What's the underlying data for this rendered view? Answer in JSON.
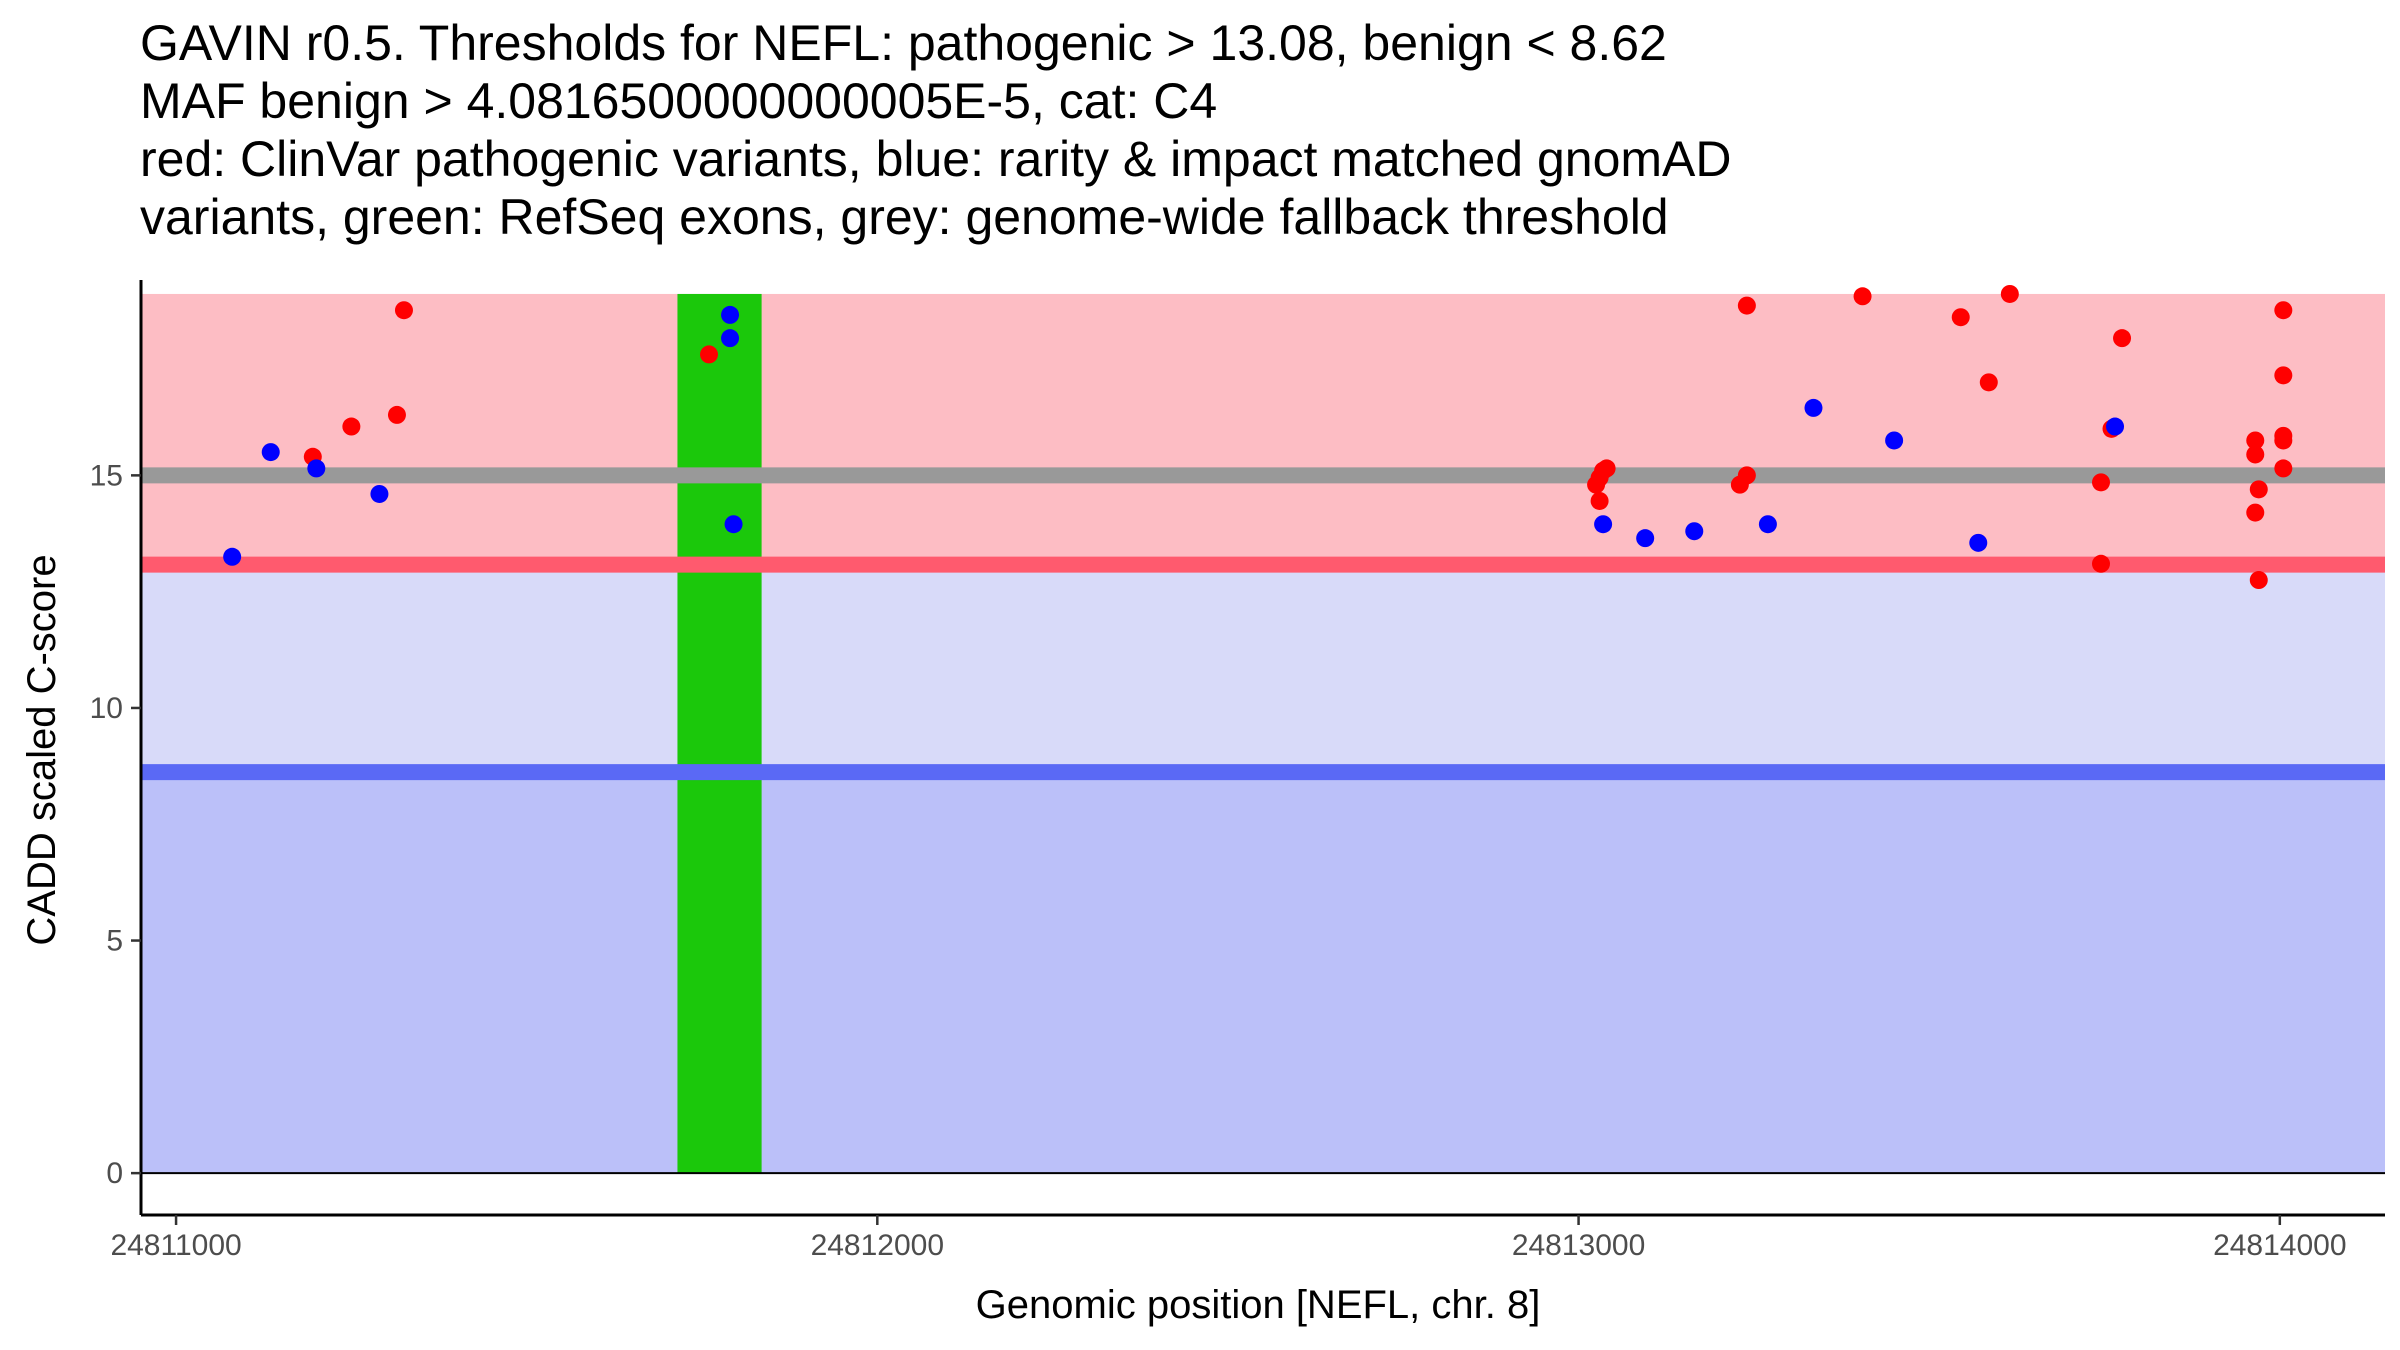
{
  "chart_data": {
    "type": "scatter",
    "title_lines": [
      "GAVIN r0.5. Thresholds for NEFL: pathogenic > 13.08, benign < 8.62",
      "MAF benign > 4.0816500000000005E-5, cat: C4",
      "red: ClinVar pathogenic variants, blue: rarity & impact matched gnomAD",
      "variants, green: RefSeq exons, grey: genome-wide fallback threshold"
    ],
    "xlabel": "Genomic position [NEFL, chr. 8]",
    "ylabel": "CADD scaled C-score",
    "xlim": [
      24810950,
      24814150
    ],
    "ylim": [
      -0.9,
      19.2
    ],
    "x_ticks": [
      {
        "value": 24811000,
        "label": "24811000"
      },
      {
        "value": 24812000,
        "label": "24812000"
      },
      {
        "value": 24813000,
        "label": "24813000"
      },
      {
        "value": 24814000,
        "label": "24814000"
      }
    ],
    "y_ticks": [
      {
        "value": 0,
        "label": "0"
      },
      {
        "value": 5,
        "label": "5"
      },
      {
        "value": 10,
        "label": "10"
      },
      {
        "value": 15,
        "label": "15"
      }
    ],
    "x_range": [
      24810950,
      24814150
    ],
    "regions": [
      {
        "name": "benign-region",
        "y_from": 0,
        "y_to": 8.62,
        "color": "#bbc0f9"
      },
      {
        "name": "calibration-region",
        "y_from": 8.62,
        "y_to": 13.08,
        "color": "#d8daf9"
      },
      {
        "name": "pathogenic-region",
        "y_from": 13.08,
        "y_to": 18.9,
        "color": "#fdbdc4"
      }
    ],
    "threshold_lines": [
      {
        "name": "benign-threshold",
        "value": 8.62,
        "color": "#5a69f5"
      },
      {
        "name": "pathogenic-threshold",
        "value": 13.08,
        "color": "#ff5a6e"
      },
      {
        "name": "fallback-threshold",
        "value": 15.0,
        "color": "#999999"
      }
    ],
    "exons": [
      {
        "start": 24811715,
        "end": 24811835,
        "y_from": 0,
        "y_to": 18.9,
        "color": "#1bc80b"
      }
    ],
    "series": [
      {
        "name": "ClinVar pathogenic variants",
        "color": "#ff0000",
        "points": [
          {
            "x": 24811195,
            "y": 15.4
          },
          {
            "x": 24811250,
            "y": 16.05
          },
          {
            "x": 24811315,
            "y": 16.3
          },
          {
            "x": 24811325,
            "y": 18.55
          },
          {
            "x": 24811760,
            "y": 17.6
          },
          {
            "x": 24813025,
            "y": 14.8
          },
          {
            "x": 24813030,
            "y": 14.95
          },
          {
            "x": 24813035,
            "y": 15.1
          },
          {
            "x": 24813040,
            "y": 15.15
          },
          {
            "x": 24813030,
            "y": 14.45
          },
          {
            "x": 24813230,
            "y": 14.8
          },
          {
            "x": 24813240,
            "y": 15.0
          },
          {
            "x": 24813240,
            "y": 18.65
          },
          {
            "x": 24813405,
            "y": 18.85
          },
          {
            "x": 24813545,
            "y": 18.4
          },
          {
            "x": 24813585,
            "y": 17.0
          },
          {
            "x": 24813615,
            "y": 18.9
          },
          {
            "x": 24813745,
            "y": 14.85
          },
          {
            "x": 24813745,
            "y": 13.1
          },
          {
            "x": 24813760,
            "y": 16.0
          },
          {
            "x": 24813775,
            "y": 17.95
          },
          {
            "x": 24813965,
            "y": 15.75
          },
          {
            "x": 24813965,
            "y": 15.45
          },
          {
            "x": 24813970,
            "y": 14.7
          },
          {
            "x": 24813965,
            "y": 14.2
          },
          {
            "x": 24813970,
            "y": 12.75
          },
          {
            "x": 24814005,
            "y": 18.55
          },
          {
            "x": 24814005,
            "y": 17.15
          },
          {
            "x": 24814005,
            "y": 15.85
          },
          {
            "x": 24814005,
            "y": 15.75
          },
          {
            "x": 24814005,
            "y": 15.15
          }
        ]
      },
      {
        "name": "rarity & impact matched gnomAD variants",
        "color": "#0000ff",
        "points": [
          {
            "x": 24811080,
            "y": 13.25
          },
          {
            "x": 24811135,
            "y": 15.5
          },
          {
            "x": 24811200,
            "y": 15.15
          },
          {
            "x": 24811290,
            "y": 14.6
          },
          {
            "x": 24811790,
            "y": 18.45
          },
          {
            "x": 24811790,
            "y": 17.95
          },
          {
            "x": 24811795,
            "y": 13.95
          },
          {
            "x": 24813035,
            "y": 13.95
          },
          {
            "x": 24813095,
            "y": 13.65
          },
          {
            "x": 24813165,
            "y": 13.8
          },
          {
            "x": 24813270,
            "y": 13.95
          },
          {
            "x": 24813335,
            "y": 16.45
          },
          {
            "x": 24813450,
            "y": 15.75
          },
          {
            "x": 24813570,
            "y": 13.55
          },
          {
            "x": 24813765,
            "y": 16.05
          }
        ]
      }
    ]
  }
}
